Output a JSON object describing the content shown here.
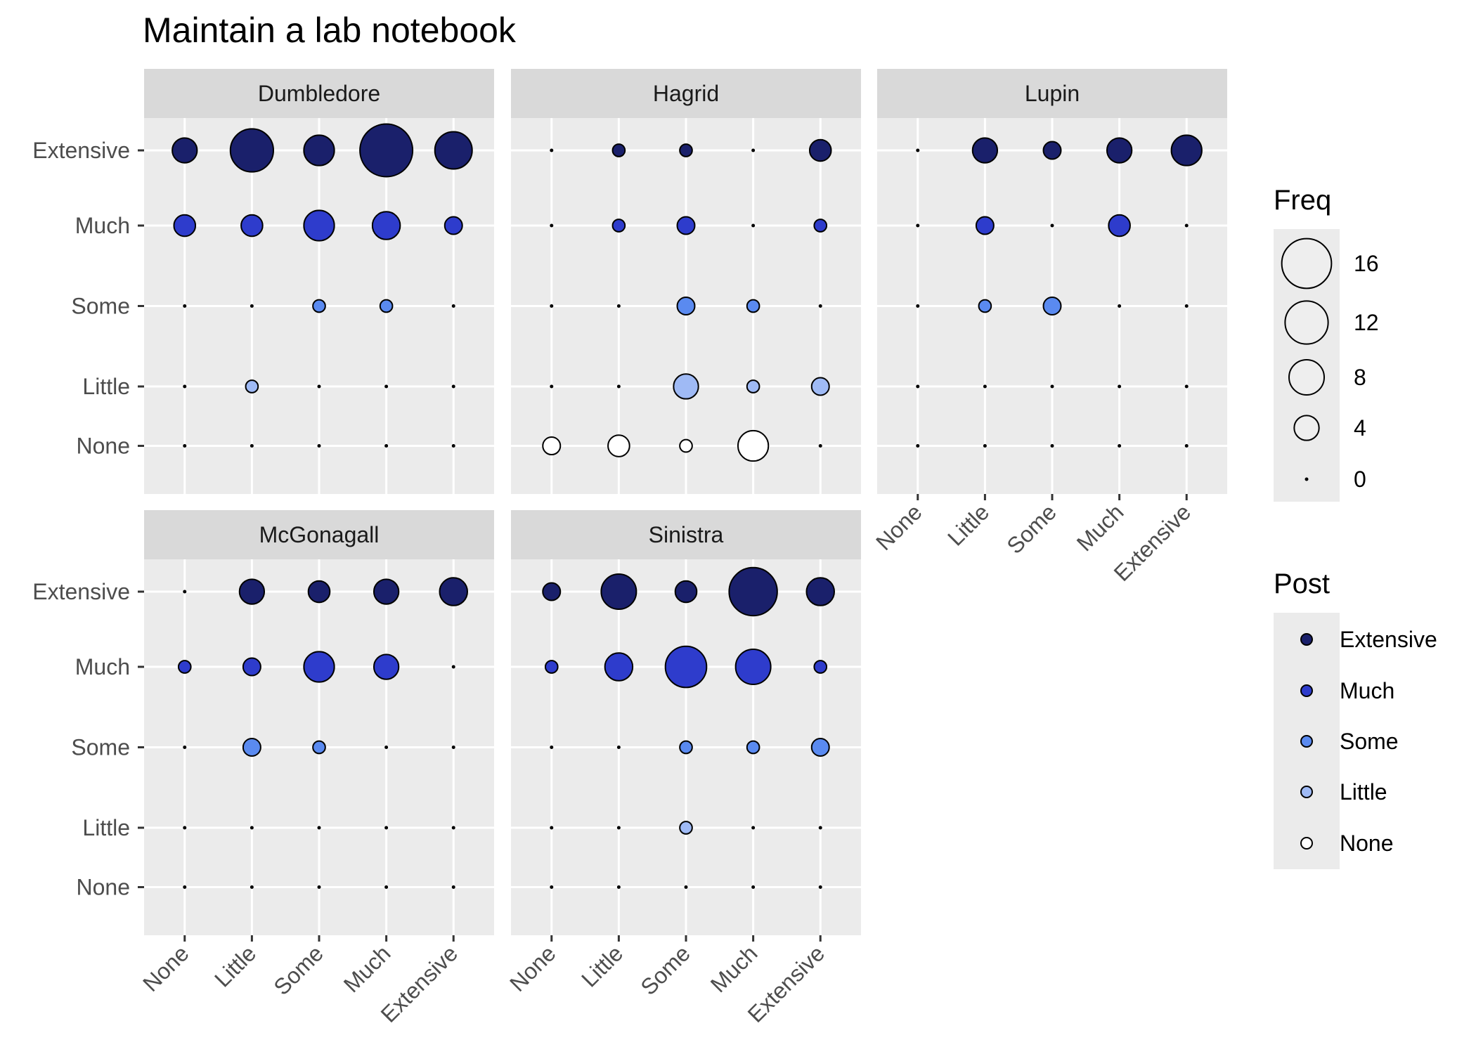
{
  "chart_data": {
    "type": "scatter",
    "title": "Maintain a lab notebook",
    "xlabel": "",
    "ylabel": "",
    "categories": [
      "None",
      "Little",
      "Some",
      "Much",
      "Extensive"
    ],
    "facets": [
      {
        "name": "Dumbledore",
        "rows": {
          "Extensive": [
            4,
            12,
            6,
            18,
            9
          ],
          "Much": [
            3,
            3,
            6,
            5,
            2
          ],
          "Some": [
            0,
            0,
            1,
            1,
            0
          ],
          "Little": [
            0,
            1,
            0,
            0,
            0
          ],
          "None": [
            0,
            0,
            0,
            0,
            0
          ]
        }
      },
      {
        "name": "Hagrid",
        "rows": {
          "Extensive": [
            0,
            1,
            1,
            0,
            3
          ],
          "Much": [
            0,
            1,
            2,
            0,
            1
          ],
          "Some": [
            0,
            0,
            2,
            1,
            0
          ],
          "Little": [
            0,
            0,
            4,
            1,
            2
          ],
          "None": [
            2,
            3,
            1,
            6,
            0
          ]
        }
      },
      {
        "name": "Lupin",
        "rows": {
          "Extensive": [
            0,
            4,
            2,
            4,
            6
          ],
          "Much": [
            0,
            2,
            0,
            3,
            0
          ],
          "Some": [
            0,
            1,
            2,
            0,
            0
          ],
          "Little": [
            0,
            0,
            0,
            0,
            0
          ],
          "None": [
            0,
            0,
            0,
            0,
            0
          ]
        }
      },
      {
        "name": "McGonagall",
        "rows": {
          "Extensive": [
            0,
            4,
            3,
            4,
            5
          ],
          "Much": [
            1,
            2,
            6,
            4,
            0
          ],
          "Some": [
            0,
            2,
            1,
            0,
            0
          ],
          "Little": [
            0,
            0,
            0,
            0,
            0
          ],
          "None": [
            0,
            0,
            0,
            0,
            0
          ]
        }
      },
      {
        "name": "Sinistra",
        "rows": {
          "Extensive": [
            2,
            8,
            3,
            15,
            5
          ],
          "Much": [
            1,
            5,
            11,
            8,
            1
          ],
          "Some": [
            0,
            0,
            1,
            1,
            2
          ],
          "Little": [
            0,
            0,
            1,
            0,
            0
          ],
          "None": [
            0,
            0,
            0,
            0,
            0
          ]
        }
      }
    ],
    "size_legend": {
      "title": "Freq",
      "values": [
        16,
        12,
        8,
        4,
        0
      ]
    },
    "color_legend": {
      "title": "Post",
      "levels": [
        "Extensive",
        "Much",
        "Some",
        "Little",
        "None"
      ],
      "colors": [
        "#1a206b",
        "#2e3ccc",
        "#5a8af0",
        "#9fbaf5",
        "#ffffff"
      ]
    },
    "grid": true,
    "legend_position": "right"
  }
}
